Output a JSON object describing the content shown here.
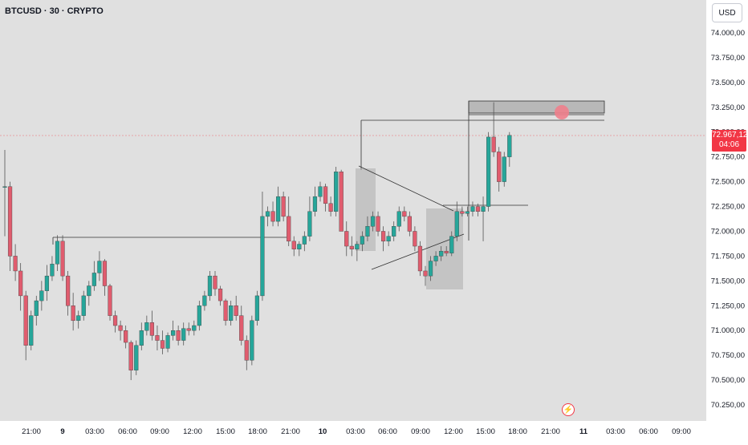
{
  "header": {
    "symbol_title": "BTCUSD · 30 · CRYPTO"
  },
  "axis": {
    "currency": "USD"
  },
  "last_price": {
    "value": "72.967,12",
    "countdown": "04:06"
  },
  "colors": {
    "up": "#26a69a",
    "down": "#e05c6e",
    "bg": "#e0e0e0",
    "last_price": "#f23645",
    "zone": "#b8b8b8"
  },
  "icons": {
    "replay": "lightning-icon"
  },
  "chart_data": {
    "type": "candlestick",
    "y_tick_labels": [
      "74.000,00",
      "73.750,00",
      "73.500,00",
      "73.250,00",
      "73.000,00",
      "72.750,00",
      "72.500,00",
      "72.250,00",
      "72.000,00",
      "71.750,00",
      "71.500,00",
      "71.250,00",
      "71.000,00",
      "70.750,00",
      "70.500,00",
      "70.250,00"
    ],
    "y_ticks": [
      74000,
      73750,
      73500,
      73250,
      73000,
      72750,
      72500,
      72250,
      72000,
      71750,
      71500,
      71250,
      71000,
      70750,
      70500,
      70250
    ],
    "ylim": [
      70150,
      74250
    ],
    "x_tick_labels": [
      "21:00",
      "9",
      "03:00",
      "06:00",
      "09:00",
      "12:00",
      "15:00",
      "18:00",
      "21:00",
      "10",
      "03:00",
      "06:00",
      "09:00",
      "12:00",
      "15:00",
      "18:00",
      "21:00",
      "11",
      "03:00",
      "06:00",
      "09:00"
    ],
    "x_ticks": [
      6,
      12,
      18,
      24,
      30,
      36,
      42,
      48,
      54,
      60,
      66,
      72,
      78,
      84,
      90,
      96,
      102,
      108,
      114,
      120,
      126
    ],
    "candles": [
      {
        "o": 72450,
        "h": 72820,
        "l": 71950,
        "c": 72450
      },
      {
        "o": 72450,
        "h": 72500,
        "l": 71600,
        "c": 71750
      },
      {
        "o": 71750,
        "h": 71870,
        "l": 71500,
        "c": 71600
      },
      {
        "o": 71600,
        "h": 71680,
        "l": 71200,
        "c": 71350
      },
      {
        "o": 71350,
        "h": 71400,
        "l": 70700,
        "c": 70850
      },
      {
        "o": 70850,
        "h": 71200,
        "l": 70800,
        "c": 71150
      },
      {
        "o": 71150,
        "h": 71350,
        "l": 71050,
        "c": 71300
      },
      {
        "o": 71300,
        "h": 71500,
        "l": 71200,
        "c": 71400
      },
      {
        "o": 71400,
        "h": 71660,
        "l": 71300,
        "c": 71550
      },
      {
        "o": 71550,
        "h": 71750,
        "l": 71500,
        "c": 71670
      },
      {
        "o": 71670,
        "h": 71960,
        "l": 71600,
        "c": 71900
      },
      {
        "o": 71900,
        "h": 71960,
        "l": 71500,
        "c": 71550
      },
      {
        "o": 71550,
        "h": 71600,
        "l": 71150,
        "c": 71250
      },
      {
        "o": 71250,
        "h": 71380,
        "l": 71000,
        "c": 71100
      },
      {
        "o": 71100,
        "h": 71200,
        "l": 71020,
        "c": 71150
      },
      {
        "o": 71150,
        "h": 71400,
        "l": 71100,
        "c": 71350
      },
      {
        "o": 71350,
        "h": 71500,
        "l": 71250,
        "c": 71450
      },
      {
        "o": 71450,
        "h": 71700,
        "l": 71400,
        "c": 71580
      },
      {
        "o": 71580,
        "h": 71800,
        "l": 71500,
        "c": 71700
      },
      {
        "o": 71700,
        "h": 71720,
        "l": 71350,
        "c": 71450
      },
      {
        "o": 71450,
        "h": 71470,
        "l": 71100,
        "c": 71150
      },
      {
        "o": 71150,
        "h": 71200,
        "l": 70980,
        "c": 71050
      },
      {
        "o": 71050,
        "h": 71100,
        "l": 70900,
        "c": 71000
      },
      {
        "o": 71000,
        "h": 71050,
        "l": 70820,
        "c": 70880
      },
      {
        "o": 70880,
        "h": 70900,
        "l": 70500,
        "c": 70600
      },
      {
        "o": 70600,
        "h": 70900,
        "l": 70550,
        "c": 70850
      },
      {
        "o": 70850,
        "h": 71080,
        "l": 70800,
        "c": 71000
      },
      {
        "o": 71000,
        "h": 71150,
        "l": 70950,
        "c": 71080
      },
      {
        "o": 71080,
        "h": 71200,
        "l": 70900,
        "c": 70950
      },
      {
        "o": 70950,
        "h": 71050,
        "l": 70800,
        "c": 70900
      },
      {
        "o": 70900,
        "h": 71000,
        "l": 70760,
        "c": 70820
      },
      {
        "o": 70820,
        "h": 70980,
        "l": 70780,
        "c": 70950
      },
      {
        "o": 70950,
        "h": 71100,
        "l": 70900,
        "c": 71000
      },
      {
        "o": 71000,
        "h": 71050,
        "l": 70850,
        "c": 70900
      },
      {
        "o": 70900,
        "h": 71080,
        "l": 70850,
        "c": 71020
      },
      {
        "o": 71020,
        "h": 71080,
        "l": 70950,
        "c": 71000
      },
      {
        "o": 71000,
        "h": 71100,
        "l": 70950,
        "c": 71050
      },
      {
        "o": 71050,
        "h": 71300,
        "l": 71000,
        "c": 71250
      },
      {
        "o": 71250,
        "h": 71400,
        "l": 71200,
        "c": 71350
      },
      {
        "o": 71350,
        "h": 71600,
        "l": 71300,
        "c": 71550
      },
      {
        "o": 71550,
        "h": 71600,
        "l": 71350,
        "c": 71420
      },
      {
        "o": 71420,
        "h": 71450,
        "l": 71250,
        "c": 71300
      },
      {
        "o": 71300,
        "h": 71320,
        "l": 71050,
        "c": 71100
      },
      {
        "o": 71100,
        "h": 71300,
        "l": 71050,
        "c": 71250
      },
      {
        "o": 71250,
        "h": 71350,
        "l": 71100,
        "c": 71150
      },
      {
        "o": 71150,
        "h": 71250,
        "l": 70850,
        "c": 70900
      },
      {
        "o": 70900,
        "h": 70950,
        "l": 70600,
        "c": 70700
      },
      {
        "o": 70700,
        "h": 71150,
        "l": 70650,
        "c": 71100
      },
      {
        "o": 71100,
        "h": 71400,
        "l": 71050,
        "c": 71350
      },
      {
        "o": 71350,
        "h": 72400,
        "l": 71300,
        "c": 72150
      },
      {
        "o": 72150,
        "h": 72250,
        "l": 72050,
        "c": 72200
      },
      {
        "o": 72200,
        "h": 72300,
        "l": 72050,
        "c": 72100
      },
      {
        "o": 72100,
        "h": 72450,
        "l": 72050,
        "c": 72350
      },
      {
        "o": 72350,
        "h": 72400,
        "l": 72100,
        "c": 72150
      },
      {
        "o": 72150,
        "h": 72350,
        "l": 71850,
        "c": 71900
      },
      {
        "o": 71900,
        "h": 71950,
        "l": 71750,
        "c": 71820
      },
      {
        "o": 71820,
        "h": 71900,
        "l": 71750,
        "c": 71870
      },
      {
        "o": 71870,
        "h": 72000,
        "l": 71800,
        "c": 71950
      },
      {
        "o": 71950,
        "h": 72350,
        "l": 71900,
        "c": 72200
      },
      {
        "o": 72200,
        "h": 72450,
        "l": 72150,
        "c": 72350
      },
      {
        "o": 72350,
        "h": 72500,
        "l": 72300,
        "c": 72450
      },
      {
        "o": 72450,
        "h": 72480,
        "l": 72200,
        "c": 72280
      },
      {
        "o": 72280,
        "h": 72350,
        "l": 72150,
        "c": 72200
      },
      {
        "o": 72200,
        "h": 72650,
        "l": 72150,
        "c": 72600
      },
      {
        "o": 72600,
        "h": 72620,
        "l": 72000,
        "c": 72000
      },
      {
        "o": 72000,
        "h": 72100,
        "l": 71750,
        "c": 71850
      },
      {
        "o": 71850,
        "h": 71950,
        "l": 71750,
        "c": 71820
      },
      {
        "o": 71820,
        "h": 71900,
        "l": 71700,
        "c": 71870
      },
      {
        "o": 71870,
        "h": 72000,
        "l": 71800,
        "c": 71950
      },
      {
        "o": 71950,
        "h": 72150,
        "l": 71900,
        "c": 72050
      },
      {
        "o": 72050,
        "h": 72200,
        "l": 72000,
        "c": 72150
      },
      {
        "o": 72150,
        "h": 72200,
        "l": 71950,
        "c": 72000
      },
      {
        "o": 72000,
        "h": 72050,
        "l": 71800,
        "c": 71900
      },
      {
        "o": 71900,
        "h": 72000,
        "l": 71850,
        "c": 71950
      },
      {
        "o": 71950,
        "h": 72100,
        "l": 71900,
        "c": 72050
      },
      {
        "o": 72050,
        "h": 72250,
        "l": 72000,
        "c": 72200
      },
      {
        "o": 72200,
        "h": 72250,
        "l": 72100,
        "c": 72150
      },
      {
        "o": 72150,
        "h": 72200,
        "l": 71950,
        "c": 72000
      },
      {
        "o": 72000,
        "h": 72050,
        "l": 71800,
        "c": 71850
      },
      {
        "o": 71850,
        "h": 71900,
        "l": 71550,
        "c": 71600
      },
      {
        "o": 71600,
        "h": 71650,
        "l": 71450,
        "c": 71550
      },
      {
        "o": 71550,
        "h": 71750,
        "l": 71500,
        "c": 71700
      },
      {
        "o": 71700,
        "h": 71800,
        "l": 71650,
        "c": 71750
      },
      {
        "o": 71750,
        "h": 71850,
        "l": 71700,
        "c": 71800
      },
      {
        "o": 71800,
        "h": 71850,
        "l": 71750,
        "c": 71780
      },
      {
        "o": 71780,
        "h": 72000,
        "l": 71750,
        "c": 71950
      },
      {
        "o": 71950,
        "h": 72300,
        "l": 71900,
        "c": 72200
      },
      {
        "o": 72200,
        "h": 72250,
        "l": 72150,
        "c": 72180
      },
      {
        "o": 72180,
        "h": 72250,
        "l": 72150,
        "c": 72200
      },
      {
        "o": 72200,
        "h": 72300,
        "l": 72150,
        "c": 72250
      },
      {
        "o": 72250,
        "h": 72280,
        "l": 72150,
        "c": 72200
      },
      {
        "o": 72200,
        "h": 72350,
        "l": 71900,
        "c": 72250
      },
      {
        "o": 72250,
        "h": 73000,
        "l": 72200,
        "c": 72950
      },
      {
        "o": 72950,
        "h": 73300,
        "l": 72750,
        "c": 72800
      },
      {
        "o": 72800,
        "h": 72850,
        "l": 72400,
        "c": 72500
      },
      {
        "o": 72500,
        "h": 72800,
        "l": 72450,
        "c": 72750
      },
      {
        "o": 72750,
        "h": 73000,
        "l": 72650,
        "c": 72967
      }
    ]
  }
}
